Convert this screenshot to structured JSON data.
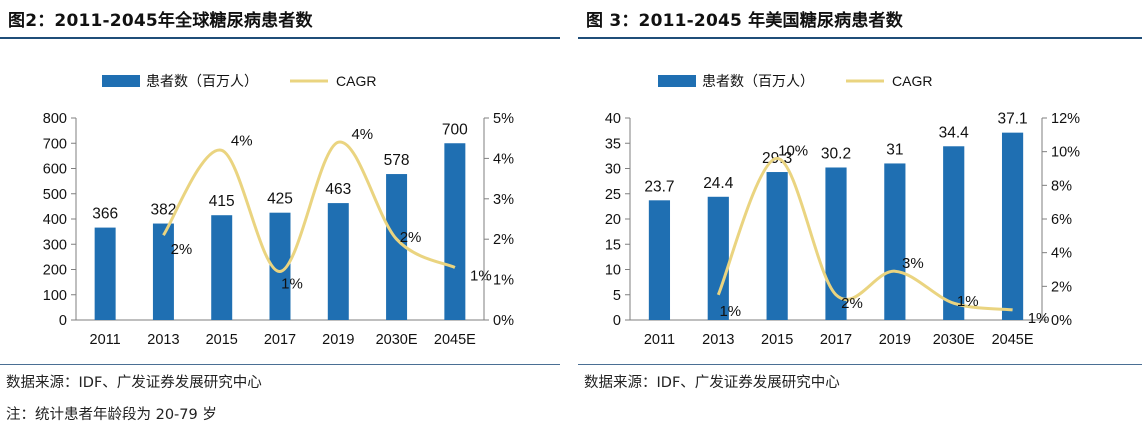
{
  "colors": {
    "bar": "#1f6fb2",
    "line": "#ead480",
    "rule": "#1f4e79"
  },
  "chart_data": [
    {
      "type": "bar",
      "title": "图2：2011-2045年全球糖尿病患者数",
      "categories": [
        "2011",
        "2013",
        "2015",
        "2017",
        "2019",
        "2030E",
        "2045E"
      ],
      "series": [
        {
          "name": "患者数（百万人）",
          "type": "bar",
          "axis": "left",
          "values": [
            366,
            382,
            415,
            425,
            463,
            578,
            700
          ],
          "labels": [
            "366",
            "382",
            "415",
            "425",
            "463",
            "578",
            "700"
          ]
        },
        {
          "name": "CAGR",
          "type": "line",
          "axis": "right",
          "values": [
            null,
            2.1,
            4.2,
            1.2,
            4.4,
            2.0,
            1.3
          ],
          "labels": [
            "",
            "2%",
            "4%",
            "1%",
            "4%",
            "2%",
            "1%"
          ]
        }
      ],
      "ylim": [
        0,
        800
      ],
      "yticks": [
        "0",
        "100",
        "200",
        "300",
        "400",
        "500",
        "600",
        "700",
        "800"
      ],
      "y2lim": [
        0,
        5
      ],
      "y2ticks": [
        "0%",
        "1%",
        "2%",
        "3%",
        "4%",
        "5%"
      ],
      "legend": "top-center",
      "grid": false
    },
    {
      "type": "bar",
      "title": "图 3：2011-2045 年美国糖尿病患者数",
      "categories": [
        "2011",
        "2013",
        "2015",
        "2017",
        "2019",
        "2030E",
        "2045E"
      ],
      "series": [
        {
          "name": "患者数（百万人）",
          "type": "bar",
          "axis": "left",
          "values": [
            23.7,
            24.4,
            29.3,
            30.2,
            31,
            34.4,
            37.1
          ],
          "labels": [
            "23.7",
            "24.4",
            "29.3",
            "30.2",
            "31",
            "34.4",
            "37.1"
          ]
        },
        {
          "name": "CAGR",
          "type": "line",
          "axis": "right",
          "values": [
            null,
            1.5,
            9.6,
            1.5,
            2.9,
            1.0,
            0.6
          ],
          "labels": [
            "",
            "1%",
            "10%",
            "2%",
            "3%",
            "1%",
            "1%"
          ]
        }
      ],
      "ylim": [
        0,
        40
      ],
      "yticks": [
        "0",
        "5",
        "10",
        "15",
        "20",
        "25",
        "30",
        "35",
        "40"
      ],
      "y2lim": [
        0,
        12
      ],
      "y2ticks": [
        "0%",
        "2%",
        "4%",
        "6%",
        "8%",
        "10%",
        "12%"
      ],
      "legend": "top-center",
      "grid": false
    }
  ],
  "footer": {
    "left_source": "数据来源：IDF、广发证券发展研究中心",
    "left_note": "注：统计患者年龄段为 20-79 岁",
    "right_source": "数据来源：IDF、广发证券发展研究中心"
  }
}
